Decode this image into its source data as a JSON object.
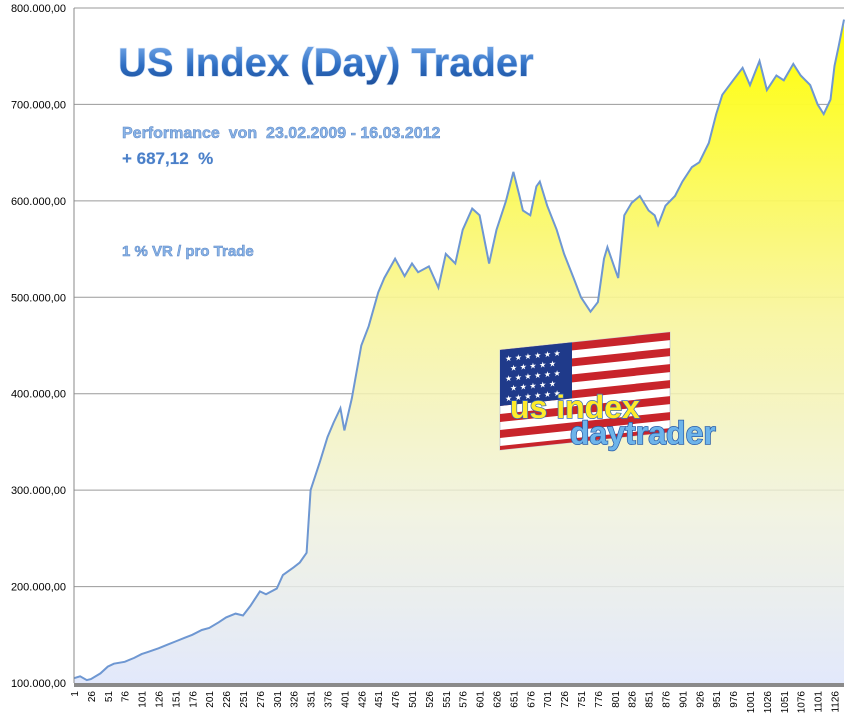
{
  "header": {
    "title": "US Index (Day) Trader",
    "performance_line": "Performance  von  23.02.2009 - 16.03.2012",
    "return_line": "+ 687,12  %",
    "risk_line": "1 % VR / pro Trade"
  },
  "logo": {
    "line1": "us index",
    "line2": "daytrader",
    "flag_icon": "us-flag-icon"
  },
  "colors": {
    "fill_top": "#ffff00",
    "fill_bottom": "#e6ecff",
    "line": "#7da2d6",
    "title": "#2f6fc4"
  },
  "chart_data": {
    "type": "area",
    "ylim": [
      100000,
      800000
    ],
    "xlim": [
      1,
      1140
    ],
    "grid": true,
    "y_ticks": [
      "100.000,00",
      "200.000,00",
      "300.000,00",
      "400.000,00",
      "500.000,00",
      "600.000,00",
      "700.000,00",
      "800.000,00"
    ],
    "y_tick_values": [
      100000,
      200000,
      300000,
      400000,
      500000,
      600000,
      700000,
      800000
    ],
    "x_ticks": [
      "1",
      "26",
      "51",
      "76",
      "101",
      "126",
      "151",
      "176",
      "201",
      "226",
      "251",
      "276",
      "301",
      "326",
      "351",
      "376",
      "401",
      "426",
      "451",
      "476",
      "501",
      "526",
      "551",
      "576",
      "601",
      "626",
      "651",
      "676",
      "701",
      "726",
      "751",
      "776",
      "801",
      "826",
      "851",
      "876",
      "901",
      "926",
      "951",
      "976",
      "1001",
      "1026",
      "1051",
      "1076",
      "1101",
      "1126"
    ],
    "series": [
      {
        "x": [
          1,
          10,
          20,
          26,
          40,
          51,
          60,
          76,
          90,
          101,
          110,
          126,
          140,
          151,
          165,
          176,
          190,
          201,
          215,
          226,
          240,
          251,
          262,
          276,
          285,
          301,
          310,
          326,
          335,
          345,
          351,
          365,
          376,
          385,
          395,
          401,
          412,
          426,
          437,
          451,
          460,
          476,
          490,
          501,
          510,
          526,
          540,
          551,
          565,
          576,
          590,
          601,
          615,
          626,
          640,
          651,
          660,
          665,
          676,
          685,
          690,
          701,
          715,
          726,
          740,
          751,
          765,
          776,
          785,
          790,
          801,
          806,
          815,
          826,
          838,
          851,
          860,
          865,
          876,
          890,
          901,
          915,
          926,
          940,
          951,
          960,
          976,
          990,
          1001,
          1015,
          1026,
          1040,
          1051,
          1065,
          1076,
          1090,
          1101,
          1110,
          1120,
          1126,
          1132,
          1140
        ],
        "y": [
          105000,
          107000,
          103000,
          104000,
          110000,
          117000,
          120000,
          122000,
          126000,
          130000,
          132000,
          136000,
          140000,
          143000,
          147000,
          150000,
          155000,
          157000,
          163000,
          168000,
          172000,
          170000,
          180000,
          195000,
          192000,
          198000,
          212000,
          220000,
          225000,
          235000,
          300000,
          330000,
          355000,
          370000,
          385000,
          362000,
          395000,
          450000,
          470000,
          505000,
          520000,
          540000,
          522000,
          535000,
          526000,
          532000,
          510000,
          545000,
          535000,
          570000,
          592000,
          585000,
          535000,
          570000,
          600000,
          630000,
          605000,
          590000,
          585000,
          615000,
          620000,
          595000,
          570000,
          545000,
          520000,
          500000,
          485000,
          495000,
          540000,
          552000,
          530000,
          520000,
          585000,
          598000,
          605000,
          590000,
          585000,
          575000,
          595000,
          605000,
          620000,
          635000,
          640000,
          660000,
          690000,
          710000,
          725000,
          738000,
          720000,
          745000,
          715000,
          730000,
          725000,
          742000,
          730000,
          720000,
          700000,
          690000,
          705000,
          740000,
          760000,
          788000
        ]
      }
    ]
  }
}
